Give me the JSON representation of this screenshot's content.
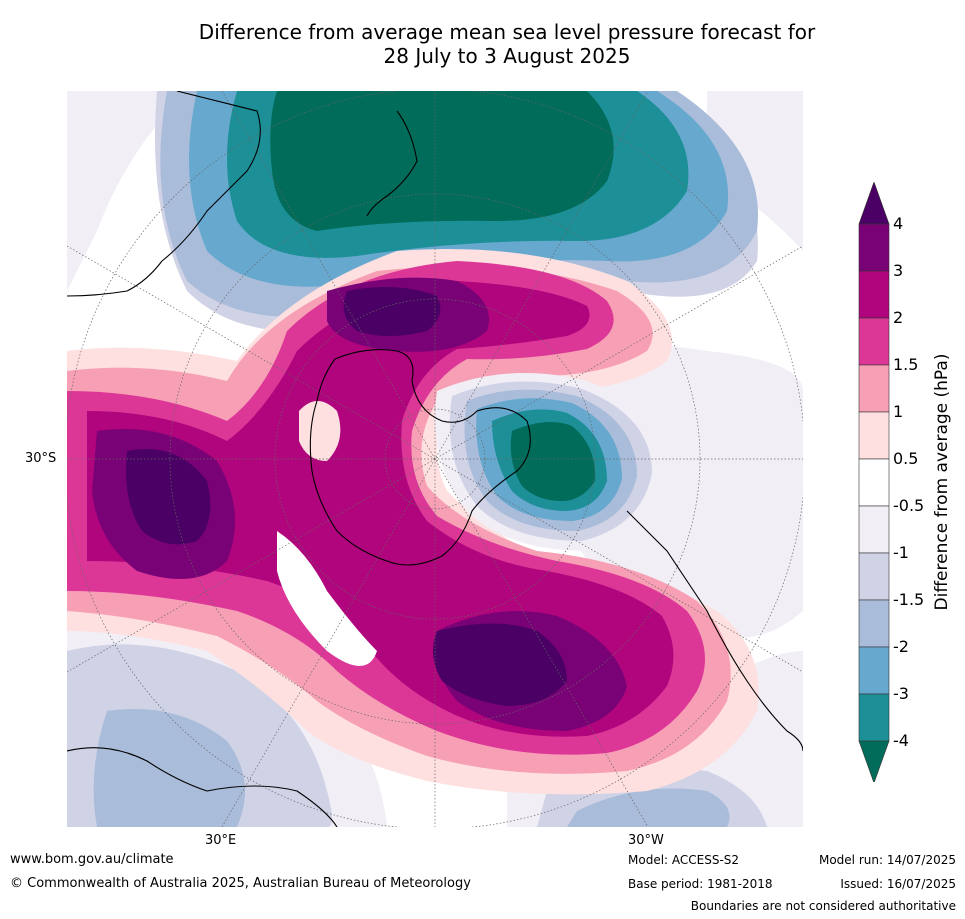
{
  "title_line1": "Difference from average mean sea level pressure forecast for",
  "title_line2": "28 July to 3 August 2025",
  "map": {
    "labels": {
      "lat_30s": "30°S",
      "lon_30e": "30°E",
      "lon_30w": "30°W"
    }
  },
  "legend": {
    "title": "Difference from average (hPa)",
    "ticks": [
      "4",
      "3",
      "2",
      "1.5",
      "1",
      "0.5",
      "-0.5",
      "-1",
      "-1.5",
      "-2",
      "-3",
      "-4"
    ],
    "colors": {
      "above_4": "#4a0064",
      "3_to_4": "#7a0277",
      "2_to_3": "#b0057c",
      "1.5_to_2": "#dc3797",
      "1_to_1.5": "#f7a0b5",
      "0.5_to_1": "#fde0df",
      "-0.5_to_0.5": "#ffffff",
      "-1_to_-0.5": "#f2eef6",
      "-1.5_to_-1": "#d0d2e6",
      "-2_to_-1.5": "#a9bcd9",
      "-3_to_-2": "#67a8cf",
      "-4_to_-3": "#1c8f97",
      "below_-4": "#016c59"
    }
  },
  "footer": {
    "website": "www.bom.gov.au/climate",
    "copyright": "© Commonwealth of Australia 2025, Australian Bureau of Meteorology",
    "model": "Model: ACCESS-S2",
    "base_period": "Base period: 1981-2018",
    "model_run": "Model run: 14/07/2025",
    "issued": "Issued: 16/07/2025",
    "disclaimer": "Boundaries are not considered authoritative"
  }
}
